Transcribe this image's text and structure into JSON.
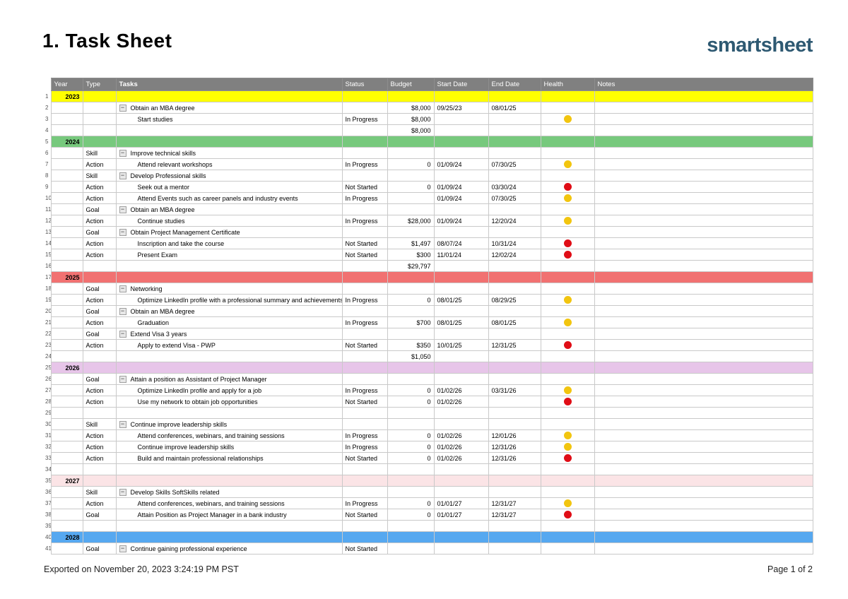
{
  "page": {
    "title": "1. Task Sheet",
    "logo": "smartsheet",
    "footer_left": "Exported on November 20, 2023 3:24:19 PM PST",
    "footer_right": "Page 1 of 2"
  },
  "colors": {
    "header_bg": "#808080",
    "header_text": "#ffffff",
    "logo_blue": "#2e5972",
    "grid_line": "#c9c9c9",
    "health_yellow": "#f2c50f",
    "health_red": "#e00d16",
    "year_2023": "#ffff00",
    "year_2024": "#77c97d",
    "year_2025": "#f17171",
    "year_2026": "#e7c5e9",
    "year_2027": "#fbe4e6",
    "year_2028": "#56a8f0"
  },
  "icons": {
    "collapse_glyph": "−"
  },
  "table": {
    "columns": [
      "Year",
      "Type",
      "Tasks",
      "Status",
      "Budget",
      "Start Date",
      "End Date",
      "Health",
      "Notes"
    ],
    "rows": [
      {
        "num": 1,
        "year": "2023",
        "color": "#ffff00"
      },
      {
        "num": 2,
        "task": "Obtain an MBA degree",
        "level": "parent",
        "budget": "$8,000",
        "start": "09/25/23",
        "end": "08/01/25"
      },
      {
        "num": 3,
        "task": "Start studies",
        "level": "child",
        "status": "In Progress",
        "budget": "$8,000",
        "health": "yellow"
      },
      {
        "num": 4,
        "budget": "$8,000"
      },
      {
        "num": 5,
        "year": "2024",
        "color": "#77c97d"
      },
      {
        "num": 6,
        "type": "Skill",
        "task": "Improve technical skills",
        "level": "parent"
      },
      {
        "num": 7,
        "type": "Action",
        "task": "Attend relevant workshops",
        "level": "child",
        "status": "In Progress",
        "budget": "0",
        "start": "01/09/24",
        "end": "07/30/25",
        "health": "yellow"
      },
      {
        "num": 8,
        "type": "Skill",
        "task": "Develop Professional skills",
        "level": "parent"
      },
      {
        "num": 9,
        "type": "Action",
        "task": "Seek out a mentor",
        "level": "child",
        "status": "Not Started",
        "budget": "0",
        "start": "01/09/24",
        "end": "03/30/24",
        "health": "red"
      },
      {
        "num": 10,
        "type": "Action",
        "task": "Attend Events such as career panels and industry events",
        "level": "child",
        "status": "In Progress",
        "start": "01/09/24",
        "end": "07/30/25",
        "health": "yellow"
      },
      {
        "num": 11,
        "type": "Goal",
        "task": "Obtain an MBA degree",
        "level": "parent"
      },
      {
        "num": 12,
        "type": "Action",
        "task": "Continue studies",
        "level": "child",
        "status": "In Progress",
        "budget": "$28,000",
        "start": "01/09/24",
        "end": "12/20/24",
        "health": "yellow"
      },
      {
        "num": 13,
        "type": "Goal",
        "task": "Obtain Project Management Certificate",
        "level": "parent"
      },
      {
        "num": 14,
        "type": "Action",
        "task": "Inscription and take the course",
        "level": "child",
        "status": "Not Started",
        "budget": "$1,497",
        "start": "08/07/24",
        "end": "10/31/24",
        "health": "red"
      },
      {
        "num": 15,
        "type": "Action",
        "task": "Present Exam",
        "level": "child",
        "status": "Not Started",
        "budget": "$300",
        "start": "11/01/24",
        "end": "12/02/24",
        "health": "red"
      },
      {
        "num": 16,
        "budget": "$29,797"
      },
      {
        "num": 17,
        "year": "2025",
        "color": "#f17171"
      },
      {
        "num": 18,
        "type": "Goal",
        "task": "Networking",
        "level": "parent"
      },
      {
        "num": 19,
        "type": "Action",
        "task": "Optimize LinkedIn profile with a professional summary and achievements",
        "level": "child",
        "status": "In Progress",
        "budget": "0",
        "start": "08/01/25",
        "end": "08/29/25",
        "health": "yellow"
      },
      {
        "num": 20,
        "type": "Goal",
        "task": "Obtain an MBA degree",
        "level": "parent"
      },
      {
        "num": 21,
        "type": "Action",
        "task": "Graduation",
        "level": "child",
        "status": "In Progress",
        "budget": "$700",
        "start": "08/01/25",
        "end": "08/01/25",
        "health": "yellow"
      },
      {
        "num": 22,
        "type": "Goal",
        "task": "Extend Visa 3 years",
        "level": "parent"
      },
      {
        "num": 23,
        "type": "Action",
        "task": "Apply to extend Visa - PWP",
        "level": "child",
        "status": "Not Started",
        "budget": "$350",
        "start": "10/01/25",
        "end": "12/31/25",
        "health": "red"
      },
      {
        "num": 24,
        "budget": "$1,050"
      },
      {
        "num": 25,
        "year": "2026",
        "color": "#e7c5e9"
      },
      {
        "num": 26,
        "type": "Goal",
        "task": "Attain a position as Assistant of Project Manager",
        "level": "parent"
      },
      {
        "num": 27,
        "type": "Action",
        "task": "Optimize LinkedIn profile and apply for a job",
        "level": "child",
        "status": "In Progress",
        "budget": "0",
        "start": "01/02/26",
        "end": "03/31/26",
        "health": "yellow"
      },
      {
        "num": 28,
        "type": "Action",
        "task": "Use my network to obtain job opportunities",
        "level": "child",
        "status": "Not Started",
        "budget": "0",
        "start": "01/02/26",
        "health": "red"
      },
      {
        "num": 29
      },
      {
        "num": 30,
        "type": "Skill",
        "task": "Continue improve leadership skills",
        "level": "parent"
      },
      {
        "num": 31,
        "type": "Action",
        "task": "Attend conferences, webinars, and training sessions",
        "level": "child",
        "status": "In Progress",
        "budget": "0",
        "start": "01/02/26",
        "end": "12/01/26",
        "health": "yellow"
      },
      {
        "num": 32,
        "type": "Action",
        "task": "Continue improve leadership skills",
        "level": "child",
        "status": "In Progress",
        "budget": "0",
        "start": "01/02/26",
        "end": "12/31/26",
        "health": "yellow"
      },
      {
        "num": 33,
        "type": "Action",
        "task": "Build and maintain professional relationships",
        "level": "child",
        "status": "Not Started",
        "budget": "0",
        "start": "01/02/26",
        "end": "12/31/26",
        "health": "red"
      },
      {
        "num": 34
      },
      {
        "num": 35,
        "year": "2027",
        "color": "#fbe4e6"
      },
      {
        "num": 36,
        "type": "Skill",
        "task": "Develop Skills SoftSkills related",
        "level": "parent"
      },
      {
        "num": 37,
        "type": "Action",
        "task": "Attend conferences, webinars, and training sessions",
        "level": "child",
        "status": "In Progress",
        "budget": "0",
        "start": "01/01/27",
        "end": "12/31/27",
        "health": "yellow"
      },
      {
        "num": 38,
        "type": "Goal",
        "task": "Attain Position as Project Manager in a bank industry",
        "level": "child",
        "status": "Not Started",
        "budget": "0",
        "start": "01/01/27",
        "end": "12/31/27",
        "health": "red"
      },
      {
        "num": 39
      },
      {
        "num": 40,
        "year": "2028",
        "color": "#56a8f0"
      },
      {
        "num": 41,
        "type": "Goal",
        "task": "Continue gaining professional experience",
        "level": "parent",
        "status": "Not Started"
      }
    ]
  }
}
